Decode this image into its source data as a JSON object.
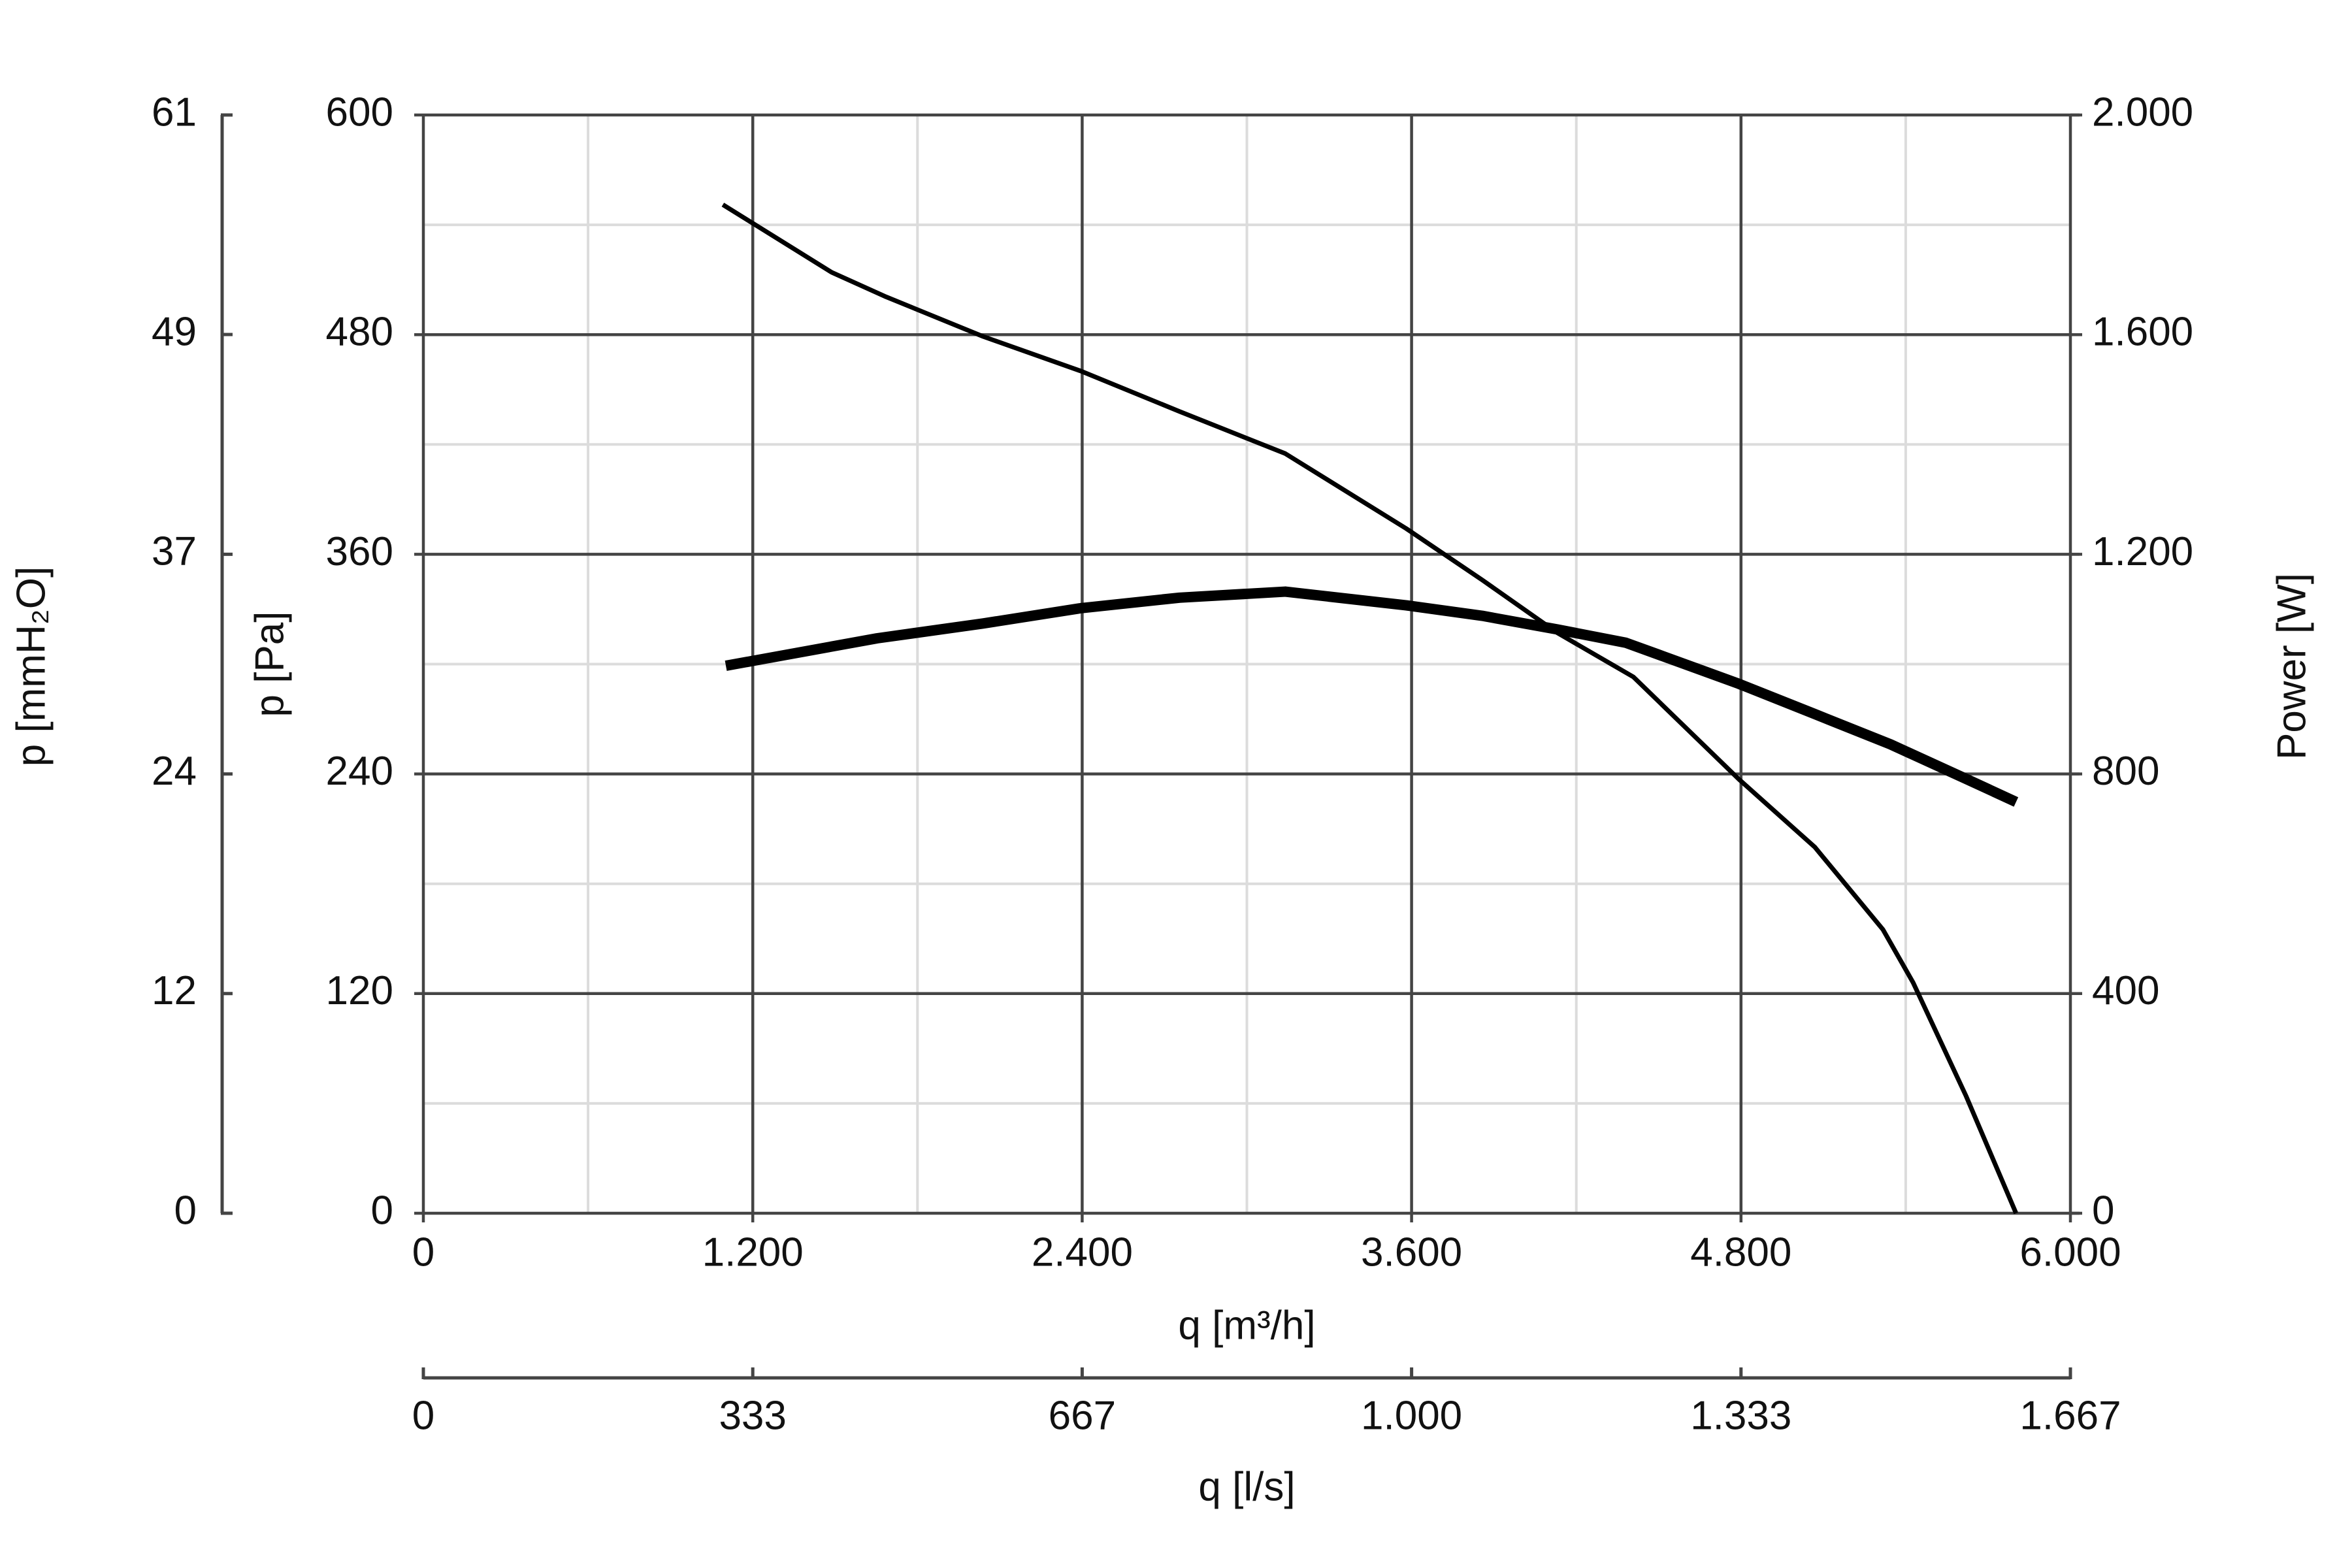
{
  "chart_data": {
    "type": "line",
    "xlabel": "q [m³/h]",
    "ylabel": "p [Pa]",
    "y2label": "Power [W]",
    "y3label": "p [mmH₂O]",
    "x2label": "q [l/s]",
    "xlim": [
      0,
      6000
    ],
    "xticks": [
      0,
      {
        "value": 1200,
        "label": "1.200"
      },
      {
        "value": 2400,
        "label": "2.400"
      },
      {
        "value": 3600,
        "label": "3.600"
      },
      {
        "value": 4800,
        "label": "4.800"
      },
      {
        "value": 6000,
        "label": "6.000"
      }
    ],
    "xminor": [
      600,
      1800,
      3000,
      4200,
      5400
    ],
    "ylim": [
      0,
      600
    ],
    "yticks": [
      0,
      120,
      240,
      360,
      480,
      600
    ],
    "yminor": [
      60,
      180,
      300,
      420,
      540
    ],
    "y2lim": [
      0,
      2000
    ],
    "y2ticks": [
      0,
      400,
      800,
      {
        "value": 1200,
        "label": "1.200"
      },
      {
        "value": 1600,
        "label": "1.600"
      },
      {
        "value": 2000,
        "label": "2.000"
      }
    ],
    "y3lim": [
      0,
      61.18
    ],
    "y3ticks": [
      0,
      {
        "value": 12.24,
        "label": "12"
      },
      {
        "value": 24.47,
        "label": "24"
      },
      {
        "value": 36.71,
        "label": "37"
      },
      {
        "value": 48.95,
        "label": "49"
      },
      {
        "value": 61.18,
        "label": "61"
      }
    ],
    "x2lim": [
      0,
      1666.67
    ],
    "x2ticks": [
      0,
      {
        "value": 333.33,
        "label": "333"
      },
      {
        "value": 666.67,
        "label": "667"
      },
      {
        "value": 1000,
        "label": "1.000"
      },
      {
        "value": 1333.33,
        "label": "1.333"
      },
      {
        "value": 1666.67,
        "label": "1.667"
      }
    ],
    "grid": true,
    "series": [
      {
        "color": "#000000",
        "width": 7,
        "x": [
          1091,
          1488,
          1680,
          2039,
          2397,
          2755,
          3140,
          3581,
          3857,
          4132,
          4408,
          4793,
          5069,
          5317,
          5427,
          5620,
          5802
        ],
        "values": [
          551,
          514,
          501,
          479,
          460,
          438,
          415,
          374,
          346,
          317,
          293,
          237,
          200,
          155,
          126,
          64,
          0
        ]
      },
      {
        "color": "#000000",
        "width": 16,
        "axis": "y2",
        "x": [
          1102,
          1653,
          2039,
          2397,
          2755,
          3140,
          3581,
          3857,
          4132,
          4380,
          4518,
          4793,
          5069,
          5344,
          5620,
          5802
        ],
        "values": [
          997,
          1047,
          1074,
          1102,
          1121,
          1132,
          1107,
          1088,
          1063,
          1039,
          1014,
          964,
          909,
          854,
          791,
          749
        ]
      }
    ]
  }
}
